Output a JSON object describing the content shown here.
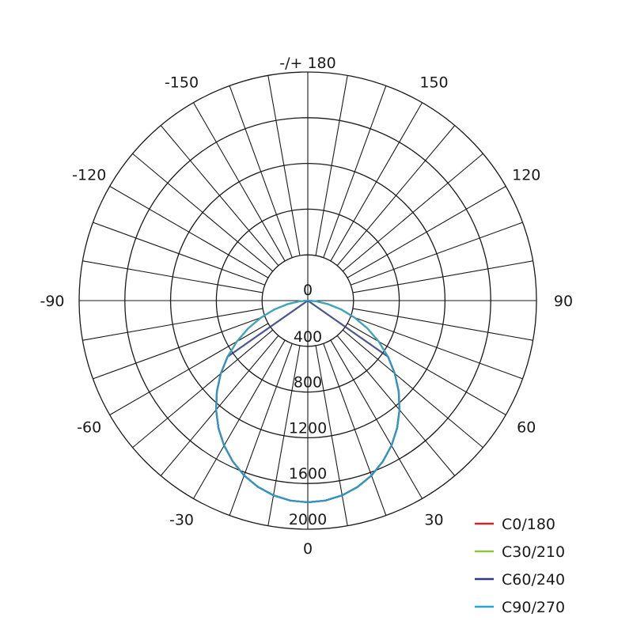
{
  "chart_data": {
    "type": "polar",
    "title": "",
    "angle_labels": [
      {
        "angle": 180,
        "text": "-/+ 180"
      },
      {
        "angle": 150,
        "text": "150"
      },
      {
        "angle": 120,
        "text": "120"
      },
      {
        "angle": 90,
        "text": "90"
      },
      {
        "angle": 60,
        "text": "60"
      },
      {
        "angle": 30,
        "text": "30"
      },
      {
        "angle": 0,
        "text": "0"
      },
      {
        "angle": -30,
        "text": "-30"
      },
      {
        "angle": -60,
        "text": "-60"
      },
      {
        "angle": -90,
        "text": "-90"
      },
      {
        "angle": -120,
        "text": "-120"
      },
      {
        "angle": -150,
        "text": "-150"
      }
    ],
    "radial_ticks": [
      0,
      400,
      800,
      1200,
      1600,
      2000
    ],
    "rlim": [
      0,
      2000
    ],
    "angular_grid_step": 10,
    "grid": true,
    "legend_position": "bottom-right",
    "angles": [
      -90,
      -85,
      -80,
      -75,
      -70,
      -65,
      -60,
      -55,
      -50,
      -45,
      -40,
      -35,
      -30,
      -25,
      -20,
      -15,
      -10,
      -5,
      0,
      5,
      10,
      15,
      20,
      25,
      30,
      35,
      40,
      45,
      50,
      55,
      60,
      65,
      70,
      75,
      80,
      85,
      90
    ],
    "series": [
      {
        "name": "C0/180",
        "color": "#d2232a",
        "values": [
          0,
          74,
          182,
          305,
          437,
          576,
          717,
          857,
          994,
          1125,
          1248,
          1362,
          1464,
          1553,
          1628,
          1687,
          1730,
          1756,
          1765,
          1756,
          1730,
          1687,
          1628,
          1553,
          1464,
          1362,
          1248,
          1125,
          994,
          857,
          717,
          576,
          437,
          305,
          182,
          74,
          0
        ]
      },
      {
        "name": "C30/210",
        "color": "#8cc63f",
        "values": [
          0,
          74,
          182,
          305,
          437,
          576,
          717,
          857,
          994,
          1125,
          1248,
          1362,
          1464,
          1553,
          1628,
          1687,
          1730,
          1756,
          1765,
          1756,
          1730,
          1687,
          1628,
          1553,
          1464,
          1362,
          1248,
          1125,
          994,
          857,
          717,
          576,
          437,
          305,
          182,
          74,
          0
        ]
      },
      {
        "name": "C60/240",
        "color": "#2b3a7a",
        "values": [
          0,
          0,
          0,
          0,
          0,
          0,
          0,
          857,
          994,
          1125,
          1248,
          1362,
          1464,
          1553,
          1628,
          1687,
          1730,
          1756,
          1765,
          1756,
          1730,
          1687,
          1628,
          1553,
          1464,
          1362,
          1248,
          1125,
          994,
          857,
          0,
          0,
          0,
          0,
          0,
          0,
          0
        ]
      },
      {
        "name": "C90/270",
        "color": "#29a3d8",
        "values": [
          0,
          74,
          182,
          305,
          437,
          576,
          717,
          857,
          994,
          1125,
          1248,
          1362,
          1464,
          1553,
          1628,
          1687,
          1730,
          1756,
          1765,
          1756,
          1730,
          1687,
          1628,
          1553,
          1464,
          1362,
          1248,
          1125,
          994,
          857,
          717,
          576,
          437,
          305,
          182,
          74,
          0
        ]
      }
    ]
  }
}
